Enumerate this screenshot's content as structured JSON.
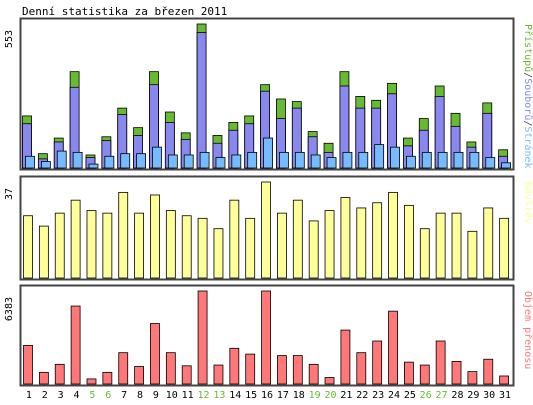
{
  "title": "Denní statistika za březen 2011",
  "colors": {
    "frame": "#444444",
    "hits": "#66bb33",
    "files": "#8888ee",
    "pages": "#77bbff",
    "visits": "#ffff99",
    "kbytes": "#ff7777",
    "weekend_label": "#66bb33",
    "weekday_label": "#000000"
  },
  "chart_data": [
    {
      "type": "bar",
      "panel": "top",
      "max_label": "553",
      "ylim": [
        0,
        553
      ],
      "legend_vertical": [
        {
          "text": "Přístupů",
          "color": "#66bb33"
        },
        {
          "text": "/",
          "color": "#444444"
        },
        {
          "text": "Souborů",
          "color": "#8888ee"
        },
        {
          "text": "/",
          "color": "#444444"
        },
        {
          "text": "Stránek",
          "color": "#77bbff"
        }
      ],
      "categories": [
        "1",
        "2",
        "3",
        "4",
        "5",
        "6",
        "7",
        "8",
        "9",
        "10",
        "11",
        "12",
        "13",
        "14",
        "15",
        "16",
        "17",
        "18",
        "19",
        "20",
        "21",
        "22",
        "23",
        "24",
        "25",
        "26",
        "27",
        "28",
        "29",
        "30",
        "31"
      ],
      "series": [
        {
          "name": "Přístupů",
          "values": [
            200,
            55,
            115,
            370,
            50,
            120,
            230,
            155,
            370,
            215,
            135,
            553,
            125,
            175,
            200,
            320,
            265,
            255,
            140,
            95,
            370,
            275,
            260,
            325,
            115,
            190,
            315,
            210,
            100,
            250,
            70
          ]
        },
        {
          "name": "Souborů",
          "values": [
            170,
            35,
            100,
            310,
            40,
            105,
            205,
            125,
            320,
            175,
            110,
            520,
            95,
            145,
            170,
            295,
            190,
            230,
            120,
            60,
            315,
            230,
            230,
            285,
            85,
            145,
            275,
            160,
            80,
            210,
            45
          ]
        },
        {
          "name": "Stránek",
          "values": [
            45,
            25,
            65,
            60,
            15,
            45,
            55,
            55,
            80,
            50,
            50,
            60,
            40,
            50,
            60,
            115,
            60,
            60,
            50,
            40,
            60,
            60,
            90,
            80,
            45,
            60,
            60,
            60,
            60,
            40,
            20
          ]
        }
      ]
    },
    {
      "type": "bar",
      "panel": "middle",
      "max_label": "37",
      "ylim": [
        0,
        37
      ],
      "legend_vertical": [
        {
          "text": "Návštěv",
          "color": "#ffff99"
        }
      ],
      "categories": [
        "1",
        "2",
        "3",
        "4",
        "5",
        "6",
        "7",
        "8",
        "9",
        "10",
        "11",
        "12",
        "13",
        "14",
        "15",
        "16",
        "17",
        "18",
        "19",
        "20",
        "21",
        "22",
        "23",
        "24",
        "25",
        "26",
        "27",
        "28",
        "29",
        "30",
        "31"
      ],
      "series": [
        {
          "name": "Návštěv",
          "values": [
            24,
            20,
            25,
            30,
            26,
            25,
            33,
            25,
            32,
            26,
            24,
            23,
            19,
            30,
            23,
            37,
            25,
            30,
            22,
            26,
            31,
            27,
            29,
            33,
            28,
            19,
            25,
            25,
            18,
            27,
            23
          ]
        }
      ]
    },
    {
      "type": "bar",
      "panel": "bottom",
      "max_label": "6383",
      "ylim": [
        0,
        6383
      ],
      "legend_vertical": [
        {
          "text": "Objem přenosu",
          "color": "#ff7777"
        }
      ],
      "categories": [
        "1",
        "2",
        "3",
        "4",
        "5",
        "6",
        "7",
        "8",
        "9",
        "10",
        "11",
        "12",
        "13",
        "14",
        "15",
        "16",
        "17",
        "18",
        "19",
        "20",
        "21",
        "22",
        "23",
        "24",
        "25",
        "26",
        "27",
        "28",
        "29",
        "30",
        "31"
      ],
      "series": [
        {
          "name": "Objem přenosu",
          "values": [
            2650,
            800,
            1350,
            5350,
            350,
            800,
            2150,
            1200,
            4150,
            2150,
            1250,
            6383,
            1300,
            2450,
            2050,
            6383,
            1950,
            1950,
            1350,
            450,
            3700,
            2150,
            2950,
            5000,
            1500,
            1300,
            2950,
            1550,
            850,
            1700,
            550
          ]
        }
      ]
    }
  ],
  "x_labels": {
    "labels": [
      "1",
      "2",
      "3",
      "4",
      "5",
      "6",
      "7",
      "8",
      "9",
      "10",
      "11",
      "12",
      "13",
      "14",
      "15",
      "16",
      "17",
      "18",
      "19",
      "20",
      "21",
      "22",
      "23",
      "24",
      "25",
      "26",
      "27",
      "28",
      "29",
      "30",
      "31"
    ],
    "weekend_days": [
      "5",
      "6",
      "12",
      "13",
      "19",
      "20",
      "26",
      "27"
    ]
  }
}
